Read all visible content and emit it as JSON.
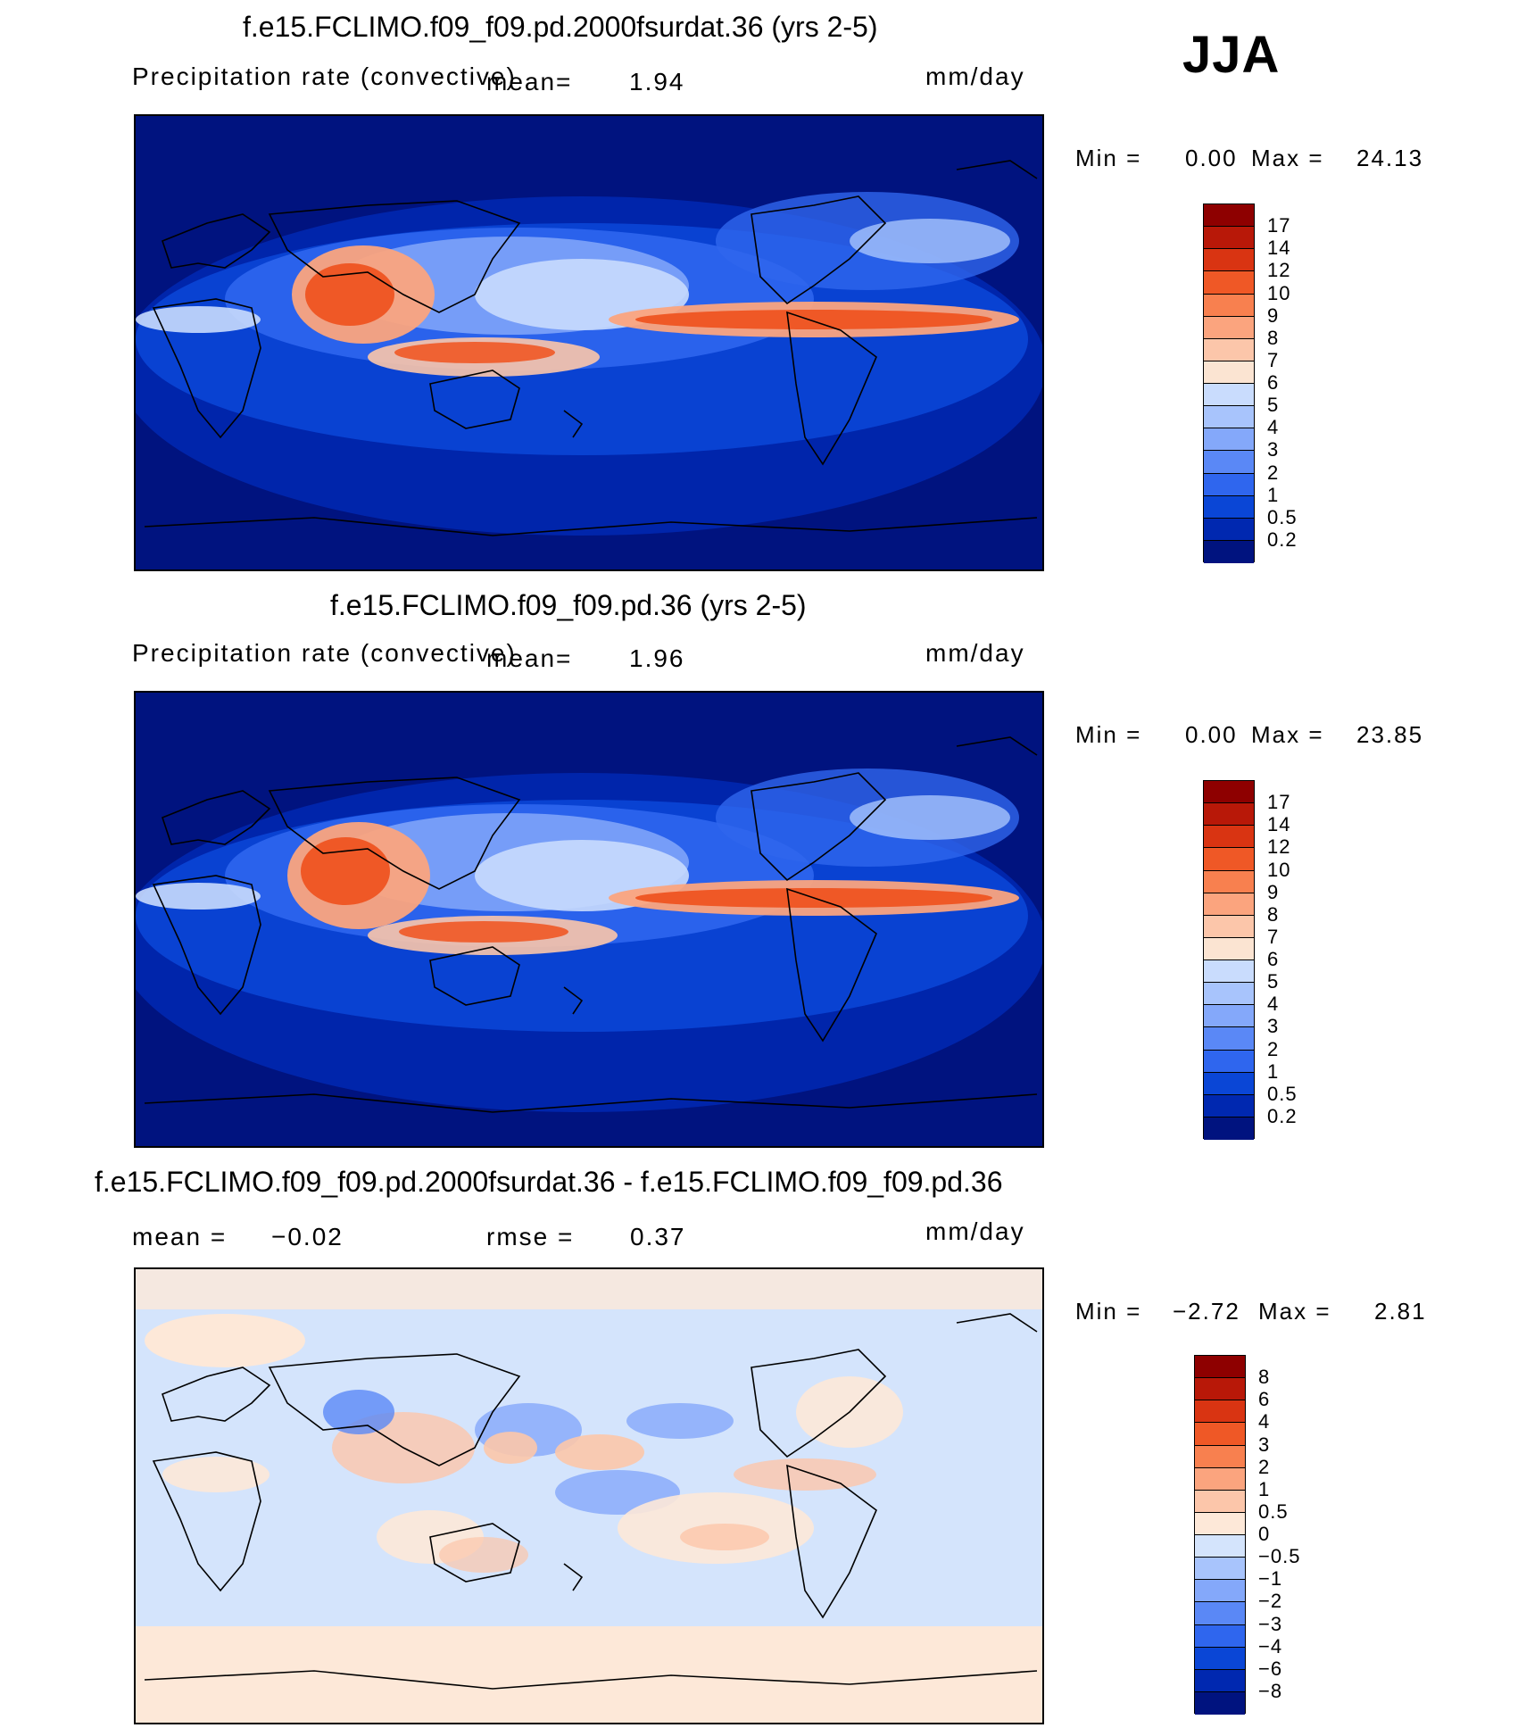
{
  "season_label": "JJA",
  "colors": {
    "precip_scale": [
      "#00137f",
      "#0028b0",
      "#0a46d6",
      "#2f66ee",
      "#5a88f6",
      "#84a8fa",
      "#a8c4fc",
      "#c9dcfd",
      "#fbe4d2",
      "#fcc6aa",
      "#fba47e",
      "#f8804f",
      "#ef5826",
      "#d93412",
      "#b81808",
      "#8e0000"
    ],
    "diff_scale": [
      "#00137f",
      "#0028b0",
      "#0a46d6",
      "#2f66ee",
      "#5a88f6",
      "#84a8fa",
      "#a8c4fc",
      "#d4e4fc",
      "#fde8d8",
      "#fcc6aa",
      "#fba47e",
      "#f8804f",
      "#ef5826",
      "#d93412",
      "#b81808",
      "#8e0000"
    ]
  },
  "panels": [
    {
      "title": "f.e15.FCLIMO.f09_f09.pd.2000fsurdat.36 (yrs 2-5)",
      "variable": "Precipitation rate (convective)",
      "mean_label": "mean=",
      "mean_value": "1.94",
      "units": "mm/day",
      "min_label": "Min =",
      "min_value": "0.00",
      "max_label": "Max =",
      "max_value": "24.13",
      "colorbar_labels": [
        "17",
        "14",
        "12",
        "10",
        "9",
        "8",
        "7",
        "6",
        "5",
        "4",
        "3",
        "2",
        "1",
        "0.5",
        "0.2"
      ]
    },
    {
      "title": "f.e15.FCLIMO.f09_f09.pd.36 (yrs 2-5)",
      "variable": "Precipitation rate (convective)",
      "mean_label": "mean=",
      "mean_value": "1.96",
      "units": "mm/day",
      "min_label": "Min =",
      "min_value": "0.00",
      "max_label": "Max =",
      "max_value": "23.85",
      "colorbar_labels": [
        "17",
        "14",
        "12",
        "10",
        "9",
        "8",
        "7",
        "6",
        "5",
        "4",
        "3",
        "2",
        "1",
        "0.5",
        "0.2"
      ]
    },
    {
      "title": "f.e15.FCLIMO.f09_f09.pd.2000fsurdat.36 - f.e15.FCLIMO.f09_f09.pd.36",
      "mean_label": "mean =",
      "mean_value": "−0.02",
      "rmse_label": "rmse =",
      "rmse_value": "0.37",
      "units": "mm/day",
      "min_label": "Min =",
      "min_value": "−2.72",
      "max_label": "Max =",
      "max_value": "2.81",
      "colorbar_labels": [
        "8",
        "6",
        "4",
        "3",
        "2",
        "1",
        "0.5",
        "0",
        "−0.5",
        "−1",
        "−2",
        "−3",
        "−4",
        "−6",
        "−8"
      ]
    }
  ]
}
